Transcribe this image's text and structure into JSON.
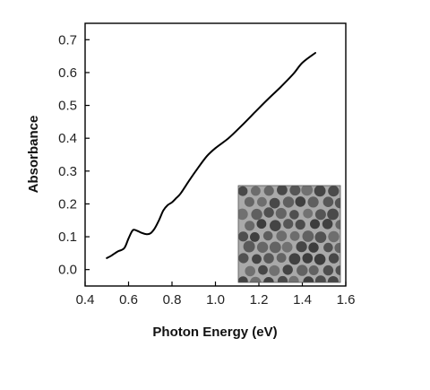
{
  "chart_data": {
    "type": "line",
    "title": "",
    "xlabel": "Photon Energy (eV)",
    "ylabel": "Absorbance",
    "xlim": [
      0.4,
      1.6
    ],
    "ylim": [
      -0.05,
      0.75
    ],
    "grid": false,
    "legend": "none",
    "xticks": [
      {
        "value": 0.4,
        "label": "0.4"
      },
      {
        "value": 0.6,
        "label": "0.6"
      },
      {
        "value": 0.8,
        "label": "0.8"
      },
      {
        "value": 1.0,
        "label": "1.0"
      },
      {
        "value": 1.2,
        "label": "1.2"
      },
      {
        "value": 1.4,
        "label": "1.4"
      },
      {
        "value": 1.6,
        "label": "1.6"
      }
    ],
    "yticks": [
      {
        "value": 0.0,
        "label": "0.0"
      },
      {
        "value": 0.1,
        "label": "0.1"
      },
      {
        "value": 0.2,
        "label": "0.2"
      },
      {
        "value": 0.3,
        "label": "0.3"
      },
      {
        "value": 0.4,
        "label": "0.4"
      },
      {
        "value": 0.5,
        "label": "0.5"
      },
      {
        "value": 0.6,
        "label": "0.6"
      },
      {
        "value": 0.7,
        "label": "0.7"
      }
    ],
    "series": [
      {
        "color": "#000000",
        "x": [
          0.5,
          0.52,
          0.55,
          0.58,
          0.6,
          0.62,
          0.64,
          0.66,
          0.68,
          0.7,
          0.72,
          0.74,
          0.76,
          0.78,
          0.8,
          0.82,
          0.84,
          0.88,
          0.92,
          0.96,
          1.0,
          1.06,
          1.12,
          1.18,
          1.24,
          1.3,
          1.36,
          1.4,
          1.46
        ],
        "y": [
          0.035,
          0.042,
          0.055,
          0.065,
          0.095,
          0.12,
          0.118,
          0.112,
          0.108,
          0.11,
          0.125,
          0.15,
          0.18,
          0.196,
          0.205,
          0.218,
          0.232,
          0.272,
          0.31,
          0.345,
          0.37,
          0.4,
          0.438,
          0.478,
          0.518,
          0.556,
          0.597,
          0.63,
          0.66
        ]
      }
    ],
    "inset": {
      "kind": "micrograph",
      "description_icon": "nanoparticle-micrograph-icon"
    }
  }
}
